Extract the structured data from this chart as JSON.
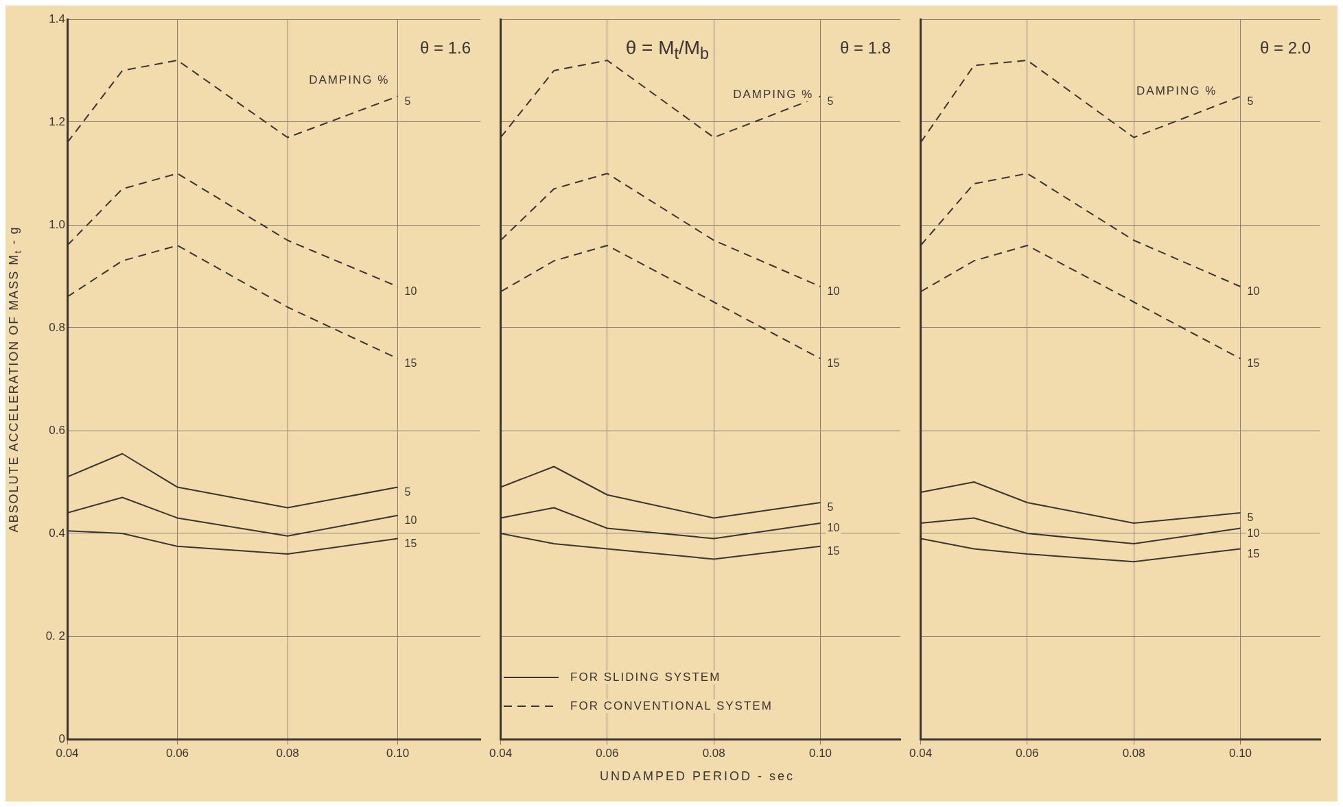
{
  "chart_data": [
    {
      "type": "line",
      "title": "θ = 1.6",
      "ylabel": "ABSOLUTE ACCELERATION OF MASS M$_{t}$ - g",
      "annotations": [
        "DAMPING %"
      ],
      "x": [
        0.04,
        0.05,
        0.06,
        0.08,
        0.1
      ],
      "xlim": [
        0.04,
        0.115
      ],
      "xticks": [
        {
          "value": 0.04,
          "label": "0.04"
        },
        {
          "value": 0.06,
          "label": "0.06"
        },
        {
          "value": 0.08,
          "label": "0.08"
        },
        {
          "value": 0.1,
          "label": "0.10"
        }
      ],
      "ylim": [
        0,
        1.4
      ],
      "yticks": [
        0,
        {
          "value": 0.2,
          "label": "0. 2"
        },
        0.4,
        0.6,
        0.8,
        {
          "value": 1,
          "label": "1.0"
        },
        1.2,
        1.4
      ],
      "grid": true,
      "marker": "none",
      "series": [
        {
          "name": "5",
          "color": "#3a3530",
          "line_style": "dashed",
          "values": [
            1.16,
            1.3,
            1.32,
            1.17,
            1.25
          ]
        },
        {
          "name": "10",
          "color": "#3a3530",
          "line_style": "dashed",
          "values": [
            0.96,
            1.07,
            1.1,
            0.97,
            0.88
          ]
        },
        {
          "name": "15",
          "color": "#3a3530",
          "line_style": "dashed",
          "values": [
            0.86,
            0.93,
            0.96,
            0.84,
            0.74
          ]
        },
        {
          "name": "5",
          "color": "#3a3530",
          "line_style": "solid",
          "values": [
            0.51,
            0.555,
            0.49,
            0.45,
            0.49
          ]
        },
        {
          "name": "10",
          "color": "#3a3530",
          "line_style": "solid",
          "values": [
            0.44,
            0.47,
            0.43,
            0.395,
            0.435
          ]
        },
        {
          "name": "15",
          "color": "#3a3530",
          "line_style": "solid",
          "values": [
            0.405,
            0.4,
            0.375,
            0.36,
            0.39
          ]
        }
      ]
    },
    {
      "type": "line",
      "title": "θ = 1.8",
      "xlabel": "UNDAMPED PERIOD - sec",
      "annotations": [
        "θ = M$_{t}$/M$_{b}$",
        "DAMPING %",
        "FOR SLIDING SYSTEM",
        "FOR CONVENTIONAL SYSTEM"
      ],
      "x": [
        0.04,
        0.05,
        0.06,
        0.08,
        0.1
      ],
      "xlim": [
        0.04,
        0.115
      ],
      "xticks": [
        {
          "value": 0.04,
          "label": "0.04"
        },
        {
          "value": 0.06,
          "label": "0.06"
        },
        {
          "value": 0.08,
          "label": "0.08"
        },
        {
          "value": 0.1,
          "label": "0.10"
        }
      ],
      "ylim": [
        0,
        1.4
      ],
      "yticks": [
        0,
        0.2,
        0.4,
        0.6,
        0.8,
        1,
        1.2,
        1.4
      ],
      "tick_labels": "x",
      "grid": true,
      "marker": "none",
      "series": [
        {
          "name": "5",
          "color": "#3a3530",
          "line_style": "dashed",
          "values": [
            1.17,
            1.3,
            1.32,
            1.17,
            1.25
          ]
        },
        {
          "name": "10",
          "color": "#3a3530",
          "line_style": "dashed",
          "values": [
            0.97,
            1.07,
            1.1,
            0.97,
            0.88
          ]
        },
        {
          "name": "15",
          "color": "#3a3530",
          "line_style": "dashed",
          "values": [
            0.87,
            0.93,
            0.96,
            0.85,
            0.74
          ]
        },
        {
          "name": "5",
          "color": "#3a3530",
          "line_style": "solid",
          "values": [
            0.49,
            0.53,
            0.475,
            0.43,
            0.46
          ]
        },
        {
          "name": "10",
          "color": "#3a3530",
          "line_style": "solid",
          "values": [
            0.43,
            0.45,
            0.41,
            0.39,
            0.42
          ]
        },
        {
          "name": "15",
          "color": "#3a3530",
          "line_style": "solid",
          "values": [
            0.4,
            0.38,
            0.37,
            0.35,
            0.375
          ]
        }
      ]
    },
    {
      "type": "line",
      "title": "θ = 2.0",
      "annotations": [
        "DAMPING %"
      ],
      "x": [
        0.04,
        0.05,
        0.06,
        0.08,
        0.1
      ],
      "xlim": [
        0.04,
        0.115
      ],
      "xticks": [
        {
          "value": 0.04,
          "label": "0.04"
        },
        {
          "value": 0.06,
          "label": "0.06"
        },
        {
          "value": 0.08,
          "label": "0.08"
        },
        {
          "value": 0.1,
          "label": "0.10"
        }
      ],
      "ylim": [
        0,
        1.4
      ],
      "yticks": [
        0,
        0.2,
        0.4,
        0.6,
        0.8,
        1,
        1.2,
        1.4
      ],
      "tick_labels": "x",
      "grid": true,
      "marker": "none",
      "series": [
        {
          "name": "5",
          "color": "#3a3530",
          "line_style": "dashed",
          "values": [
            1.16,
            1.31,
            1.32,
            1.17,
            1.25
          ]
        },
        {
          "name": "10",
          "color": "#3a3530",
          "line_style": "dashed",
          "values": [
            0.96,
            1.08,
            1.1,
            0.97,
            0.88
          ]
        },
        {
          "name": "15",
          "color": "#3a3530",
          "line_style": "dashed",
          "values": [
            0.87,
            0.93,
            0.96,
            0.85,
            0.74
          ]
        },
        {
          "name": "5",
          "color": "#3a3530",
          "line_style": "solid",
          "values": [
            0.48,
            0.5,
            0.46,
            0.42,
            0.44
          ]
        },
        {
          "name": "10",
          "color": "#3a3530",
          "line_style": "solid",
          "values": [
            0.42,
            0.43,
            0.4,
            0.38,
            0.41
          ]
        },
        {
          "name": "15",
          "color": "#3a3530",
          "line_style": "solid",
          "values": [
            0.39,
            0.37,
            0.36,
            0.345,
            0.37
          ]
        }
      ]
    }
  ]
}
